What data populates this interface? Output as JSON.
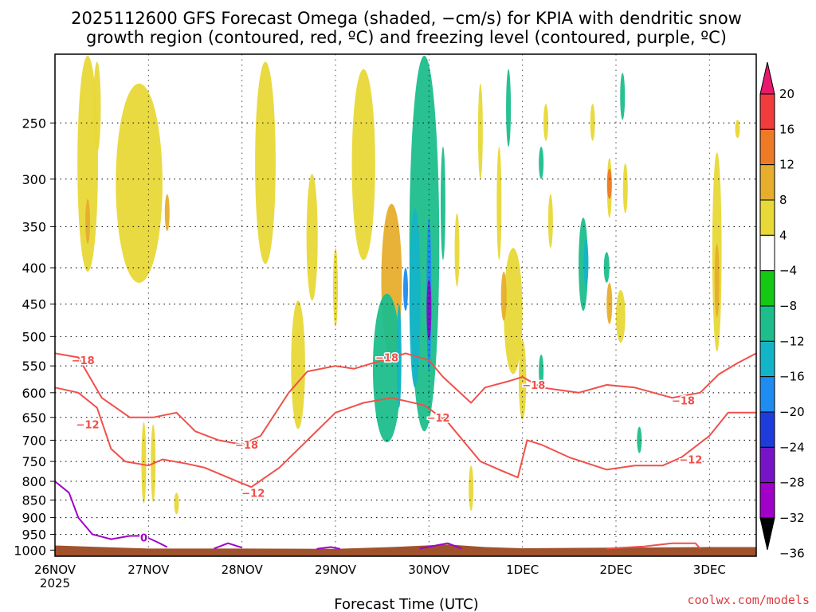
{
  "title_line1": "2025112600 GFS Forecast Omega (shaded, −cm/s) for KPIA with dendritic snow",
  "title_line2": "growth region (contoured, red, ºC) and freezing level (contoured, purple, ºC)",
  "credit": "coolwx.com/models",
  "colors": {
    "temp_contour": "#f0504a",
    "freezing_contour": "#a000c8",
    "ground": "#a0522d",
    "grid": "#000000"
  },
  "chart_data": {
    "type": "heatmap",
    "xlabel": "Forecast Time (UTC)",
    "ylabel": "",
    "x_ticks": [
      {
        "day": 0,
        "label": "26NOV",
        "sublabel": "2025"
      },
      {
        "day": 1,
        "label": "27NOV"
      },
      {
        "day": 2,
        "label": "28NOV"
      },
      {
        "day": 3,
        "label": "29NOV"
      },
      {
        "day": 4,
        "label": "30NOV"
      },
      {
        "day": 5,
        "label": "1DEC"
      },
      {
        "day": 6,
        "label": "2DEC"
      },
      {
        "day": 7,
        "label": "3DEC"
      }
    ],
    "x_range_days": [
      0,
      7.5
    ],
    "y_ticks": [
      250,
      300,
      350,
      400,
      450,
      500,
      550,
      600,
      650,
      700,
      750,
      800,
      850,
      900,
      950,
      1000
    ],
    "y_range_hpa": [
      200,
      1020
    ],
    "colorbar": {
      "labels": [
        "20",
        "16",
        "12",
        "8",
        "4",
        "−4",
        "−8",
        "−12",
        "−16",
        "−20",
        "−24",
        "−28",
        "−32",
        "−36"
      ],
      "colors": [
        "#e8186e",
        "#f03c3c",
        "#ee7a26",
        "#e6ae2c",
        "#e8d838",
        "#ffffff",
        "#14c814",
        "#1ebe8c",
        "#14b4c8",
        "#1e8cf0",
        "#1e3cdc",
        "#7814c8",
        "#a000c8",
        "#a0a0a0",
        "#000000"
      ]
    },
    "omega_regions": [
      {
        "day": 0.35,
        "p": 300,
        "dx": 0.22,
        "dp": 210,
        "value": 4
      },
      {
        "day": 0.35,
        "p": 345,
        "dx": 0.05,
        "dp": 50,
        "value": 8
      },
      {
        "day": 0.45,
        "p": 240,
        "dx": 0.08,
        "dp": 70,
        "value": 4
      },
      {
        "day": 0.9,
        "p": 320,
        "dx": 0.5,
        "dp": 200,
        "value": 4
      },
      {
        "day": 1.2,
        "p": 335,
        "dx": 0.04,
        "dp": 40,
        "value": 8
      },
      {
        "day": 1.05,
        "p": 760,
        "dx": 0.05,
        "dp": 190,
        "value": 4
      },
      {
        "day": 0.95,
        "p": 760,
        "dx": 0.03,
        "dp": 200,
        "value": 4
      },
      {
        "day": 1.3,
        "p": 860,
        "dx": 0.03,
        "dp": 60,
        "value": 4
      },
      {
        "day": 2.25,
        "p": 300,
        "dx": 0.22,
        "dp": 190,
        "value": 4
      },
      {
        "day": 2.6,
        "p": 560,
        "dx": 0.15,
        "dp": 230,
        "value": 4
      },
      {
        "day": 2.75,
        "p": 370,
        "dx": 0.12,
        "dp": 150,
        "value": 4
      },
      {
        "day": 3.0,
        "p": 430,
        "dx": 0.05,
        "dp": 110,
        "value": 4
      },
      {
        "day": 3.3,
        "p": 300,
        "dx": 0.25,
        "dp": 180,
        "value": 4
      },
      {
        "day": 3.6,
        "p": 430,
        "dx": 0.22,
        "dp": 210,
        "value": 8
      },
      {
        "day": 3.55,
        "p": 570,
        "dx": 0.3,
        "dp": 270,
        "value": -8
      },
      {
        "day": 3.95,
        "p": 420,
        "dx": 0.32,
        "dp": 520,
        "value": -8
      },
      {
        "day": 3.85,
        "p": 460,
        "dx": 0.12,
        "dp": 260,
        "value": -12
      },
      {
        "day": 4.0,
        "p": 450,
        "dx": 0.05,
        "dp": 220,
        "value": -16
      },
      {
        "day": 4.0,
        "p": 460,
        "dx": 0.02,
        "dp": 90,
        "value": -24
      },
      {
        "day": 3.68,
        "p": 540,
        "dx": 0.05,
        "dp": 180,
        "value": -12
      },
      {
        "day": 3.75,
        "p": 430,
        "dx": 0.03,
        "dp": 60,
        "value": -16
      },
      {
        "day": 4.15,
        "p": 330,
        "dx": 0.05,
        "dp": 120,
        "value": -8
      },
      {
        "day": 4.3,
        "p": 380,
        "dx": 0.03,
        "dp": 90,
        "value": 4
      },
      {
        "day": 4.55,
        "p": 260,
        "dx": 0.05,
        "dp": 80,
        "value": 4
      },
      {
        "day": 4.75,
        "p": 330,
        "dx": 0.05,
        "dp": 120,
        "value": 4
      },
      {
        "day": 4.9,
        "p": 470,
        "dx": 0.2,
        "dp": 190,
        "value": 4
      },
      {
        "day": 4.8,
        "p": 440,
        "dx": 0.06,
        "dp": 70,
        "value": 8
      },
      {
        "day": 5.0,
        "p": 580,
        "dx": 0.08,
        "dp": 150,
        "value": 4
      },
      {
        "day": 4.85,
        "p": 240,
        "dx": 0.05,
        "dp": 60,
        "value": -8
      },
      {
        "day": 5.2,
        "p": 285,
        "dx": 0.04,
        "dp": 30,
        "value": -8
      },
      {
        "day": 5.3,
        "p": 345,
        "dx": 0.02,
        "dp": 60,
        "value": 4
      },
      {
        "day": 5.65,
        "p": 400,
        "dx": 0.1,
        "dp": 120,
        "value": -8
      },
      {
        "day": 5.68,
        "p": 395,
        "dx": 0.04,
        "dp": 60,
        "value": -12
      },
      {
        "day": 5.93,
        "p": 310,
        "dx": 0.04,
        "dp": 60,
        "value": 4
      },
      {
        "day": 5.93,
        "p": 305,
        "dx": 0.02,
        "dp": 30,
        "value": 12
      },
      {
        "day": 6.1,
        "p": 310,
        "dx": 0.02,
        "dp": 50,
        "value": 4
      },
      {
        "day": 6.05,
        "p": 470,
        "dx": 0.1,
        "dp": 80,
        "value": 4
      },
      {
        "day": 5.93,
        "p": 450,
        "dx": 0.06,
        "dp": 60,
        "value": 8
      },
      {
        "day": 5.9,
        "p": 400,
        "dx": 0.06,
        "dp": 40,
        "value": -8
      },
      {
        "day": 6.07,
        "p": 230,
        "dx": 0.04,
        "dp": 35,
        "value": -8
      },
      {
        "day": 6.25,
        "p": 700,
        "dx": 0.04,
        "dp": 60,
        "value": -8
      },
      {
        "day": 7.08,
        "p": 400,
        "dx": 0.1,
        "dp": 250,
        "value": 4
      },
      {
        "day": 7.08,
        "p": 420,
        "dx": 0.04,
        "dp": 100,
        "value": 8
      },
      {
        "day": 4.45,
        "p": 820,
        "dx": 0.05,
        "dp": 120,
        "value": 4
      },
      {
        "day": 5.2,
        "p": 560,
        "dx": 0.03,
        "dp": 60,
        "value": -8
      },
      {
        "day": 5.25,
        "p": 250,
        "dx": 0.04,
        "dp": 30,
        "value": 4
      },
      {
        "day": 5.75,
        "p": 250,
        "dx": 0.03,
        "dp": 30,
        "value": 4
      },
      {
        "day": 7.3,
        "p": 255,
        "dx": 0.03,
        "dp": 15,
        "value": 4
      }
    ],
    "contours": [
      {
        "name": "dgz-top-minus-18",
        "color": "#f0504a",
        "label": "−18",
        "label_at": [
          [
            0.3,
            540
          ],
          [
            2.05,
            710
          ],
          [
            3.55,
            535
          ],
          [
            5.12,
            585
          ],
          [
            6.72,
            615
          ]
        ],
        "points": [
          [
            0,
            528
          ],
          [
            0.25,
            535
          ],
          [
            0.5,
            610
          ],
          [
            0.8,
            650
          ],
          [
            1.05,
            650
          ],
          [
            1.3,
            640
          ],
          [
            1.5,
            680
          ],
          [
            1.75,
            700
          ],
          [
            2.0,
            710
          ],
          [
            2.2,
            690
          ],
          [
            2.5,
            600
          ],
          [
            2.7,
            560
          ],
          [
            3.0,
            550
          ],
          [
            3.2,
            555
          ],
          [
            3.5,
            540
          ],
          [
            3.75,
            528
          ],
          [
            4.0,
            540
          ],
          [
            4.15,
            570
          ],
          [
            4.45,
            620
          ],
          [
            4.6,
            590
          ],
          [
            4.85,
            578
          ],
          [
            5.0,
            570
          ],
          [
            5.2,
            590
          ],
          [
            5.6,
            600
          ],
          [
            5.9,
            585
          ],
          [
            6.2,
            590
          ],
          [
            6.6,
            610
          ],
          [
            6.9,
            600
          ],
          [
            7.1,
            565
          ],
          [
            7.3,
            545
          ],
          [
            7.5,
            528
          ]
        ]
      },
      {
        "name": "dgz-bottom-minus-12",
        "color": "#f0504a",
        "label": "−12",
        "label_at": [
          [
            0.35,
            665
          ],
          [
            2.12,
            830
          ],
          [
            4.1,
            650
          ],
          [
            6.8,
            745
          ]
        ],
        "points": [
          [
            0,
            590
          ],
          [
            0.25,
            600
          ],
          [
            0.45,
            630
          ],
          [
            0.6,
            720
          ],
          [
            0.75,
            750
          ],
          [
            1.0,
            760
          ],
          [
            1.15,
            745
          ],
          [
            1.4,
            755
          ],
          [
            1.6,
            765
          ],
          [
            1.95,
            800
          ],
          [
            2.1,
            815
          ],
          [
            2.4,
            765
          ],
          [
            2.7,
            700
          ],
          [
            3.0,
            640
          ],
          [
            3.3,
            620
          ],
          [
            3.6,
            610
          ],
          [
            3.95,
            625
          ],
          [
            4.2,
            660
          ],
          [
            4.55,
            750
          ],
          [
            4.75,
            770
          ],
          [
            4.95,
            790
          ],
          [
            5.05,
            700
          ],
          [
            5.2,
            710
          ],
          [
            5.5,
            740
          ],
          [
            5.9,
            770
          ],
          [
            6.2,
            760
          ],
          [
            6.5,
            760
          ],
          [
            6.7,
            740
          ],
          [
            7.0,
            690
          ],
          [
            7.2,
            640
          ],
          [
            7.5,
            640
          ]
        ]
      },
      {
        "name": "freezing-level-0",
        "color": "#a000c8",
        "label": "0",
        "label_at": [
          [
            0.95,
            960
          ]
        ],
        "points": [
          [
            0,
            800
          ],
          [
            0.15,
            830
          ],
          [
            0.25,
            900
          ],
          [
            0.4,
            950
          ],
          [
            0.6,
            965
          ],
          [
            0.8,
            955
          ],
          [
            0.95,
            955
          ],
          [
            1.1,
            975
          ],
          [
            1.2,
            990
          ]
        ]
      },
      {
        "name": "freezing-level-bump-a",
        "color": "#a000c8",
        "label": "",
        "label_at": [],
        "points": [
          [
            1.7,
            995
          ],
          [
            1.85,
            978
          ],
          [
            2.0,
            992
          ]
        ]
      },
      {
        "name": "freezing-level-bump-b",
        "color": "#a000c8",
        "label": "",
        "label_at": [],
        "points": [
          [
            3.9,
            995
          ],
          [
            4.2,
            978
          ],
          [
            4.35,
            995
          ]
        ]
      },
      {
        "name": "freezing-level-bump-c",
        "color": "#a000c8",
        "label": "",
        "label_at": [],
        "points": [
          [
            2.8,
            996
          ],
          [
            2.95,
            990
          ],
          [
            3.05,
            996
          ]
        ]
      },
      {
        "name": "warm-surface-contour",
        "color": "#f0504a",
        "label": "",
        "label_at": [],
        "points": [
          [
            5.9,
            995
          ],
          [
            6.3,
            988
          ],
          [
            6.6,
            978
          ],
          [
            6.85,
            978
          ],
          [
            6.9,
            995
          ]
        ]
      }
    ],
    "ground_surface_hpa": [
      [
        0,
        985
      ],
      [
        0.5,
        990
      ],
      [
        1.0,
        995
      ],
      [
        2.0,
        995
      ],
      [
        3.0,
        996
      ],
      [
        3.6,
        990
      ],
      [
        4.2,
        982
      ],
      [
        4.6,
        990
      ],
      [
        5.0,
        994
      ],
      [
        6.0,
        992
      ],
      [
        7.0,
        990
      ],
      [
        7.5,
        990
      ]
    ]
  }
}
